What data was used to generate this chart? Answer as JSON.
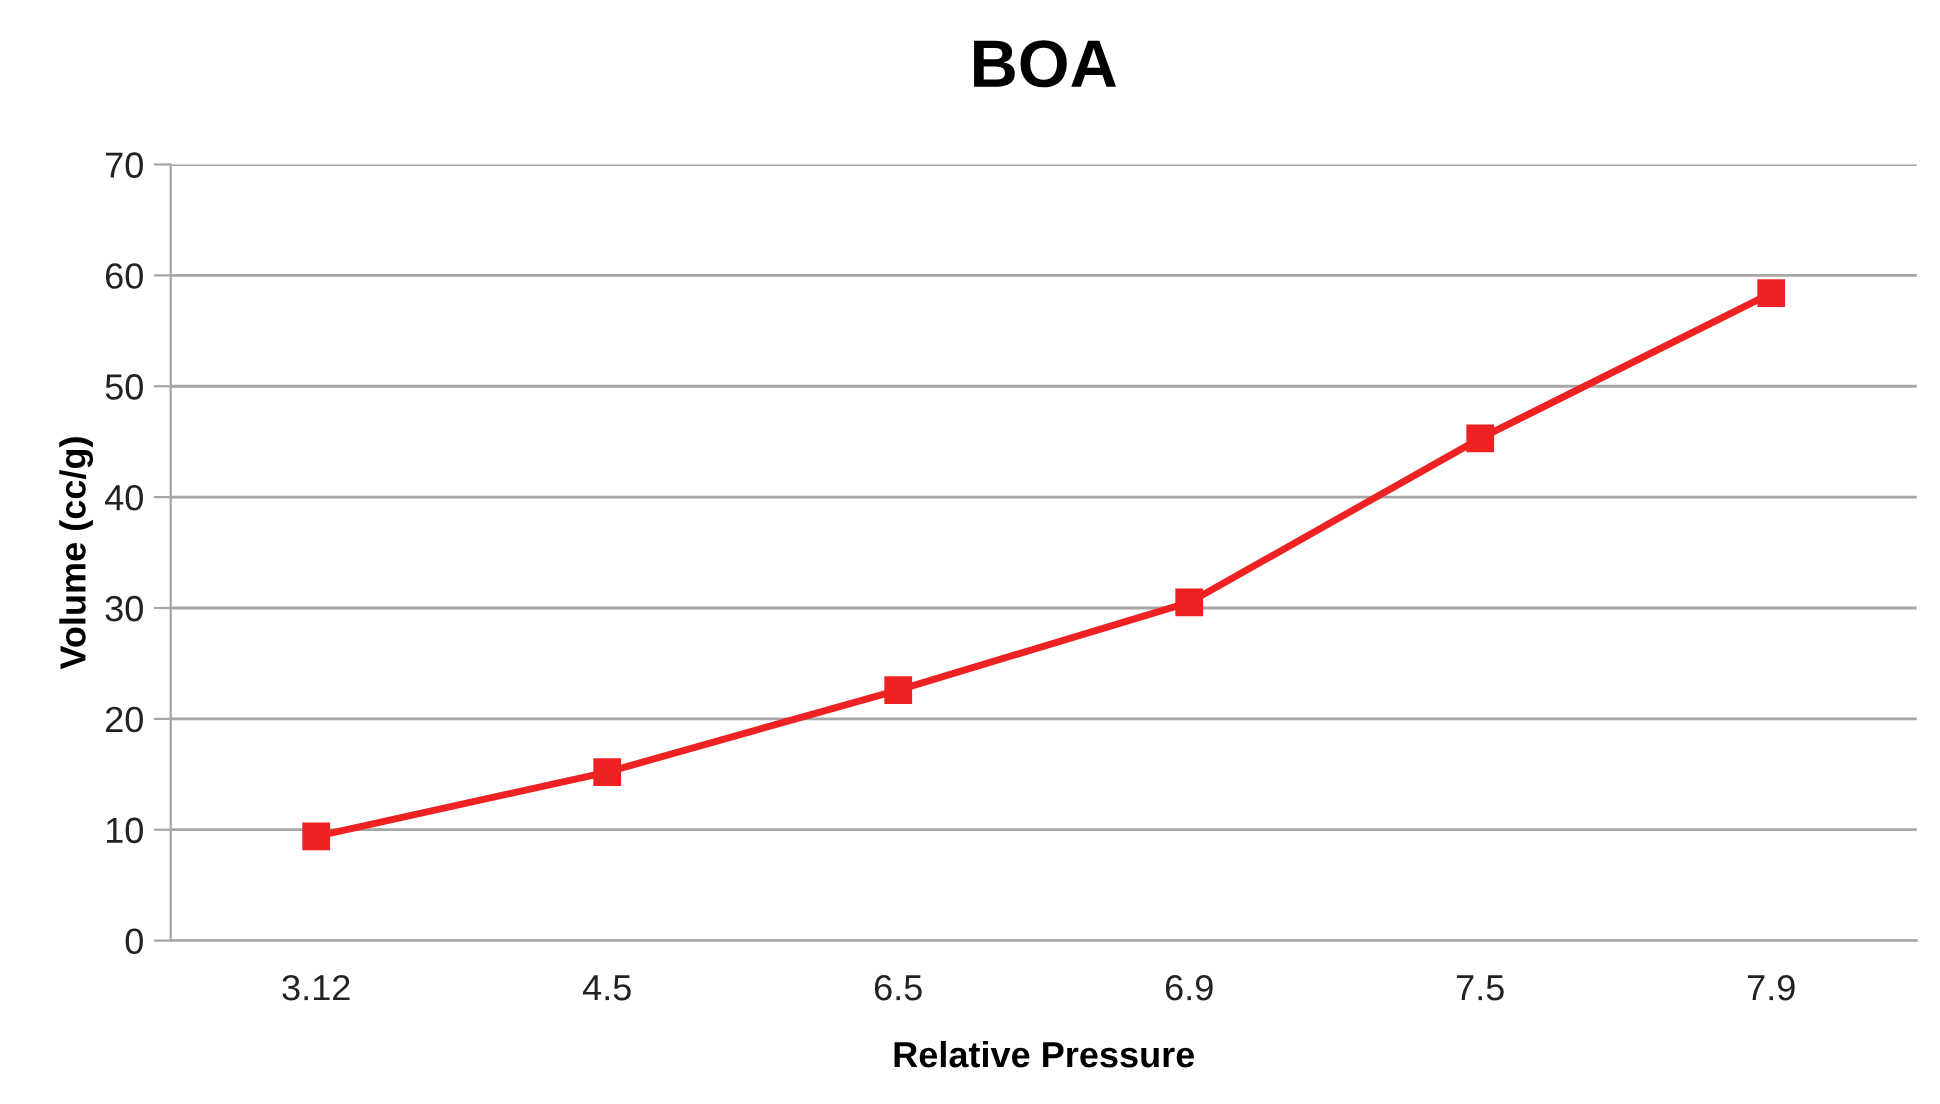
{
  "chart_data": {
    "type": "line",
    "title": "BOA",
    "xlabel": "Relative Pressure",
    "ylabel": "Volume (cc/g)",
    "categories": [
      "3.12",
      "4.5",
      "6.5",
      "6.9",
      "7.5",
      "7.9"
    ],
    "series": [
      {
        "color": "#ee2222",
        "values": [
          9.4,
          15.2,
          22.6,
          30.5,
          45.3,
          58.4
        ]
      }
    ],
    "ylim": [
      0,
      70
    ],
    "yticks": [
      0,
      10,
      20,
      30,
      40,
      50,
      60,
      70
    ],
    "grid": "y",
    "marker": "square",
    "line_style": "solid"
  }
}
